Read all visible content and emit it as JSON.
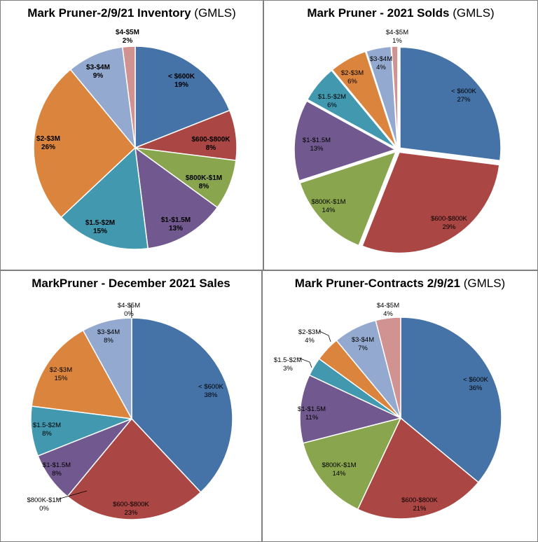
{
  "colors": {
    "<$600K": "#4572a7",
    "$600-$800K": "#aa4643",
    "$800K-$1M": "#89a54e",
    "$1-$1.5M": "#71588f",
    "$1.5-$2M": "#4198af",
    "$2-$3M": "#db843d",
    "$3-$4M": "#93a9cf",
    "$4-$5M": "#d19392"
  },
  "chart_data": [
    {
      "type": "pie",
      "title": "Mark Pruner-2/9/21 Inventory",
      "subtitle": "(GMLS)",
      "categories": [
        "< $600K",
        "$600-$800K",
        "$800K-$1M",
        "$1-$1.5M",
        "$1.5-$2M",
        "$2-$3M",
        "$3-$4M",
        "$4-$5M"
      ],
      "values": [
        19,
        8,
        8,
        13,
        15,
        26,
        9,
        2
      ],
      "labels": [
        "19%",
        "8%",
        "8%",
        "13%",
        "15%",
        "26%",
        "9%",
        "2%"
      ]
    },
    {
      "type": "pie",
      "title": "Mark Pruner - 2021 Solds",
      "subtitle": "(GMLS)",
      "categories": [
        "< $600K",
        "$600-$800K",
        "$800K-$1M",
        "$1-$1.5M",
        "$1.5-$2M",
        "$2-$3M",
        "$3-$4M",
        "$4-$5M"
      ],
      "values": [
        27,
        29,
        14,
        13,
        6,
        6,
        4,
        1
      ],
      "labels": [
        "27%",
        "29%",
        "14%",
        "13%",
        "6%",
        "6%",
        "4%",
        "1%"
      ]
    },
    {
      "type": "pie",
      "title": "MarkPruner -  December 2021 Sales",
      "subtitle": "",
      "categories": [
        "< $600K",
        "$600-$800K",
        "$800K-$1M",
        "$1-$1.5M",
        "$1.5-$2M",
        "$2-$3M",
        "$3-$4M",
        "$4-$5M"
      ],
      "values": [
        38,
        23,
        0,
        8,
        8,
        15,
        8,
        0
      ],
      "labels": [
        "38%",
        "23%",
        "0%",
        "8%",
        "8%",
        "15%",
        "8%",
        "0%"
      ]
    },
    {
      "type": "pie",
      "title": "Mark Pruner-Contracts 2/9/21",
      "subtitle": "(GMLS)",
      "categories": [
        "< $600K",
        "$600-$800K",
        "$800K-$1M",
        "$1-$1.5M",
        "$1.5-$2M",
        "$2-$3M",
        "$3-$4M",
        "$4-$5M"
      ],
      "values": [
        36,
        21,
        14,
        11,
        3,
        4,
        7,
        4
      ],
      "labels": [
        "36%",
        "21%",
        "14%",
        "11%",
        "3%",
        "4%",
        "7%",
        "4%"
      ]
    }
  ]
}
